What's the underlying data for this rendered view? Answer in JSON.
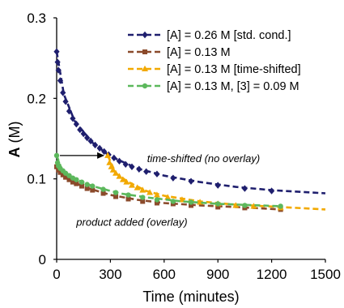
{
  "chart_data": {
    "type": "scatter",
    "xlabel": "Time (minutes)",
    "ylabel_bold": "A",
    "ylabel_unit": " (M)",
    "xlim": [
      0,
      1500
    ],
    "ylim": [
      0,
      0.3
    ],
    "x_ticks": [
      0,
      300,
      600,
      900,
      1200,
      1500
    ],
    "x_tick_labels": [
      "0",
      "300",
      "600",
      "900",
      "1200",
      "1500"
    ],
    "y_ticks": [
      0,
      0.1,
      0.2,
      0.3
    ],
    "y_tick_labels": [
      "0",
      "0.1",
      "0.2",
      "0.3"
    ],
    "grid": false,
    "legend_position": "top-right",
    "series": [
      {
        "name": "[A] = 0.26 M [std. cond.]",
        "color": "#1f1f6e",
        "marker": "diamond",
        "points": [
          [
            0,
            0.258
          ],
          [
            5,
            0.245
          ],
          [
            10,
            0.235
          ],
          [
            20,
            0.222
          ],
          [
            35,
            0.207
          ],
          [
            50,
            0.196
          ],
          [
            70,
            0.184
          ],
          [
            90,
            0.175
          ],
          [
            110,
            0.168
          ],
          [
            130,
            0.161
          ],
          [
            150,
            0.156
          ],
          [
            170,
            0.151
          ],
          [
            190,
            0.147
          ],
          [
            215,
            0.142
          ],
          [
            240,
            0.138
          ],
          [
            265,
            0.134
          ],
          [
            290,
            0.13
          ],
          [
            320,
            0.126
          ],
          [
            350,
            0.122
          ],
          [
            385,
            0.118
          ],
          [
            420,
            0.115
          ],
          [
            460,
            0.112
          ],
          [
            500,
            0.109
          ],
          [
            560,
            0.106
          ],
          [
            650,
            0.101
          ],
          [
            750,
            0.097
          ],
          [
            900,
            0.092
          ],
          [
            1050,
            0.088
          ],
          [
            1200,
            0.085
          ]
        ],
        "trend": [
          [
            0,
            0.258
          ],
          [
            40,
            0.205
          ],
          [
            100,
            0.172
          ],
          [
            200,
            0.145
          ],
          [
            300,
            0.128
          ],
          [
            450,
            0.113
          ],
          [
            600,
            0.104
          ],
          [
            800,
            0.096
          ],
          [
            1000,
            0.09
          ],
          [
            1200,
            0.086
          ],
          [
            1500,
            0.082
          ]
        ]
      },
      {
        "name": "[A] = 0.13 M",
        "color": "#8b4a2b",
        "marker": "square",
        "points": [
          [
            0,
            0.115
          ],
          [
            10,
            0.111
          ],
          [
            20,
            0.108
          ],
          [
            35,
            0.105
          ],
          [
            50,
            0.102
          ],
          [
            70,
            0.099
          ],
          [
            90,
            0.096
          ],
          [
            110,
            0.094
          ],
          [
            140,
            0.091
          ],
          [
            170,
            0.088
          ],
          [
            200,
            0.086
          ],
          [
            260,
            0.082
          ],
          [
            330,
            0.078
          ],
          [
            400,
            0.075
          ],
          [
            480,
            0.072
          ],
          [
            560,
            0.07
          ],
          [
            650,
            0.069
          ],
          [
            750,
            0.067
          ],
          [
            900,
            0.065
          ],
          [
            1050,
            0.064
          ],
          [
            1250,
            0.062
          ]
        ],
        "trend": [
          [
            0,
            0.115
          ],
          [
            50,
            0.102
          ],
          [
            150,
            0.09
          ],
          [
            300,
            0.08
          ],
          [
            450,
            0.074
          ],
          [
            600,
            0.07
          ],
          [
            800,
            0.067
          ],
          [
            1000,
            0.065
          ],
          [
            1250,
            0.062
          ]
        ]
      },
      {
        "name": "[A] = 0.13 M [time-shifted]",
        "color": "#f2a900",
        "marker": "triangle",
        "points": [
          [
            285,
            0.129
          ],
          [
            295,
            0.12
          ],
          [
            305,
            0.115
          ],
          [
            315,
            0.111
          ],
          [
            330,
            0.107
          ],
          [
            350,
            0.103
          ],
          [
            370,
            0.099
          ],
          [
            390,
            0.096
          ],
          [
            420,
            0.092
          ],
          [
            450,
            0.089
          ],
          [
            480,
            0.086
          ],
          [
            520,
            0.083
          ],
          [
            560,
            0.08
          ],
          [
            620,
            0.077
          ],
          [
            700,
            0.074
          ],
          [
            800,
            0.071
          ],
          [
            900,
            0.069
          ],
          [
            1000,
            0.067
          ],
          [
            1100,
            0.066
          ],
          [
            1250,
            0.064
          ]
        ],
        "trend": [
          [
            285,
            0.129
          ],
          [
            330,
            0.107
          ],
          [
            400,
            0.096
          ],
          [
            500,
            0.085
          ],
          [
            600,
            0.079
          ],
          [
            800,
            0.072
          ],
          [
            1000,
            0.068
          ],
          [
            1250,
            0.065
          ],
          [
            1500,
            0.062
          ]
        ]
      },
      {
        "name": "[A] = 0.13 M, [3] = 0.09 M",
        "color": "#5cb85c",
        "marker": "circle",
        "points": [
          [
            0,
            0.129
          ],
          [
            5,
            0.12
          ],
          [
            10,
            0.116
          ],
          [
            20,
            0.113
          ],
          [
            35,
            0.11
          ],
          [
            50,
            0.107
          ],
          [
            70,
            0.104
          ],
          [
            90,
            0.101
          ],
          [
            110,
            0.099
          ],
          [
            140,
            0.096
          ],
          [
            170,
            0.093
          ],
          [
            200,
            0.091
          ],
          [
            260,
            0.087
          ],
          [
            330,
            0.083
          ],
          [
            400,
            0.08
          ],
          [
            480,
            0.077
          ],
          [
            560,
            0.074
          ],
          [
            650,
            0.072
          ],
          [
            750,
            0.071
          ],
          [
            900,
            0.069
          ],
          [
            1050,
            0.067
          ],
          [
            1250,
            0.066
          ]
        ],
        "trend": [
          [
            0,
            0.129
          ],
          [
            30,
            0.111
          ],
          [
            100,
            0.1
          ],
          [
            200,
            0.091
          ],
          [
            350,
            0.082
          ],
          [
            500,
            0.077
          ],
          [
            700,
            0.072
          ],
          [
            900,
            0.069
          ],
          [
            1250,
            0.066
          ]
        ]
      }
    ],
    "annotations": [
      {
        "text": "time-shifted (no overlay)",
        "x": 820,
        "y": 0.121
      },
      {
        "text": "product added (overlay)",
        "x": 420,
        "y": 0.042
      }
    ],
    "arrow": {
      "x1": 0,
      "y1": 0.129,
      "x2": 285,
      "y2": 0.129
    }
  }
}
